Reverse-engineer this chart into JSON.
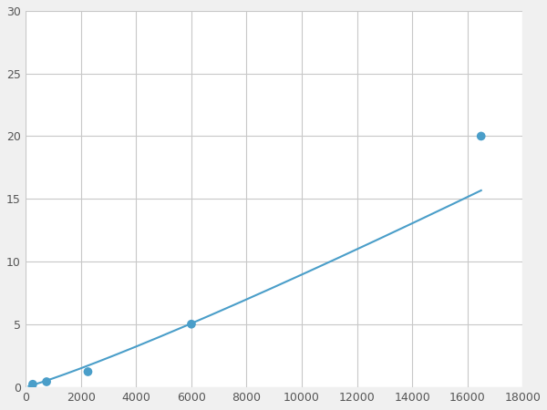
{
  "x_points": [
    250,
    750,
    2250,
    6000,
    16500
  ],
  "y_points": [
    0.2,
    0.4,
    1.2,
    5.0,
    20.0
  ],
  "line_color": "#4a9ec9",
  "marker_color": "#4a9ec9",
  "marker_size": 7,
  "line_width": 1.5,
  "xlim": [
    0,
    18000
  ],
  "ylim": [
    0,
    30
  ],
  "xticks": [
    0,
    2000,
    4000,
    6000,
    8000,
    10000,
    12000,
    14000,
    16000,
    18000
  ],
  "yticks": [
    0,
    5,
    10,
    15,
    20,
    25,
    30
  ],
  "grid_color": "#c8c8c8",
  "background_color": "#ffffff",
  "fig_background": "#f0f0f0"
}
